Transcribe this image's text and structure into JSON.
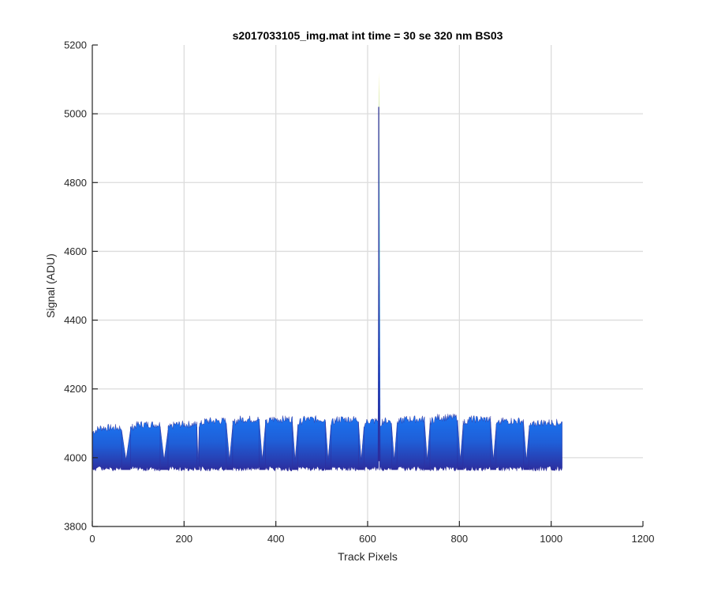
{
  "chart_data": {
    "type": "line",
    "title": "s2017033105_img.mat int time = 30 se  320 nm BS03",
    "xlabel": "Track Pixels",
    "ylabel": "Signal (ADU)",
    "xlim": [
      0,
      1200
    ],
    "ylim": [
      3800,
      5200
    ],
    "xticks": [
      "0",
      "200",
      "400",
      "600",
      "800",
      "1000",
      "1200"
    ],
    "yticks": [
      "3800",
      "4000",
      "4200",
      "4400",
      "4600",
      "4800",
      "5000",
      "5200"
    ],
    "grid": true,
    "pixel_range": [
      1,
      1024
    ],
    "colors": {
      "trace_low": "#2c2c9c",
      "trace_mid": "#1f5fd8",
      "trace_high": "#1a73f0",
      "spike_top": "#f7f0a0",
      "spike_mid": "#58d0c8"
    },
    "segments": [
      {
        "x_start": 1,
        "x_end": 64,
        "y_min": 3960,
        "y_max": 4100
      },
      {
        "x_start": 83,
        "x_end": 148,
        "y_min": 3960,
        "y_max": 4110
      },
      {
        "x_start": 165,
        "x_end": 228,
        "y_min": 3960,
        "y_max": 4110
      },
      {
        "x_start": 233,
        "x_end": 292,
        "y_min": 3960,
        "y_max": 4120
      },
      {
        "x_start": 306,
        "x_end": 364,
        "y_min": 3960,
        "y_max": 4125
      },
      {
        "x_start": 377,
        "x_end": 436,
        "y_min": 3960,
        "y_max": 4125
      },
      {
        "x_start": 448,
        "x_end": 508,
        "y_min": 3960,
        "y_max": 4125
      },
      {
        "x_start": 520,
        "x_end": 580,
        "y_min": 3960,
        "y_max": 4125
      },
      {
        "x_start": 592,
        "x_end": 624,
        "y_min": 3960,
        "y_max": 4120
      },
      {
        "x_start": 626,
        "x_end": 652,
        "y_min": 3960,
        "y_max": 4120
      },
      {
        "x_start": 664,
        "x_end": 724,
        "y_min": 3960,
        "y_max": 4125
      },
      {
        "x_start": 736,
        "x_end": 796,
        "y_min": 3960,
        "y_max": 4130
      },
      {
        "x_start": 808,
        "x_end": 868,
        "y_min": 3960,
        "y_max": 4125
      },
      {
        "x_start": 880,
        "x_end": 940,
        "y_min": 3960,
        "y_max": 4120
      },
      {
        "x_start": 952,
        "x_end": 1024,
        "y_min": 3960,
        "y_max": 4115
      }
    ],
    "spike": {
      "x": 625,
      "y_max": 5120,
      "y_base": 4000
    }
  }
}
